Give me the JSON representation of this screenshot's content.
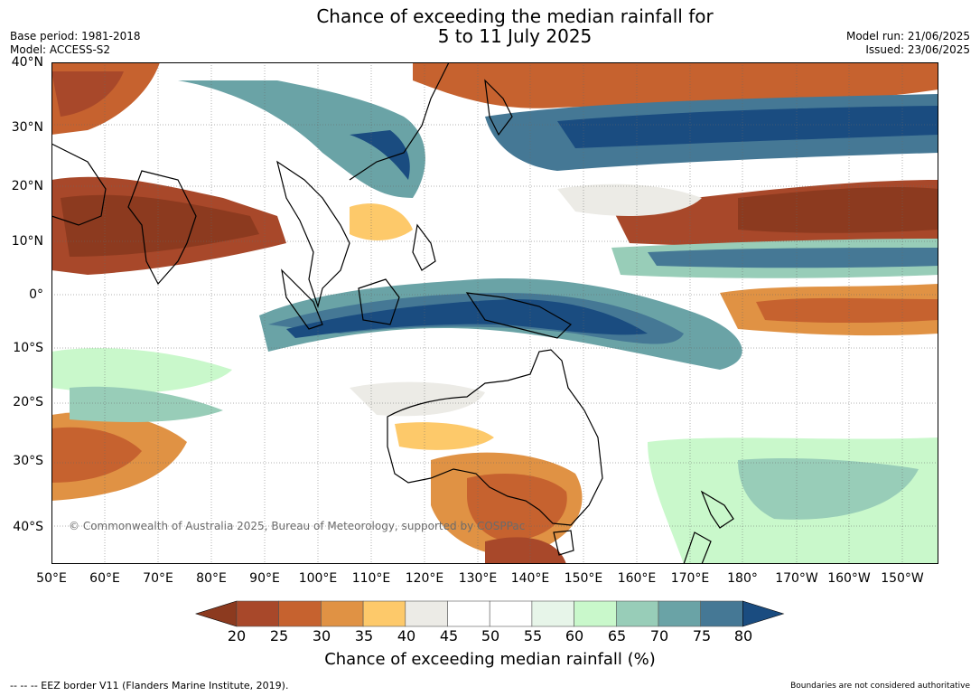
{
  "title": {
    "line1": "Chance of exceeding the median rainfall for",
    "line2": "5 to 11 July 2025"
  },
  "meta": {
    "base_period": "Base period: 1981-2018",
    "model": "Model: ACCESS-S2",
    "model_run": "Model run: 21/06/2025",
    "issued": "Issued: 23/06/2025"
  },
  "map": {
    "latitude_labels": [
      "40°N",
      "30°N",
      "20°N",
      "10°N",
      "0°",
      "10°S",
      "20°S",
      "30°S",
      "40°S"
    ],
    "longitude_labels": [
      "50°E",
      "60°E",
      "70°E",
      "80°E",
      "90°E",
      "100°E",
      "110°E",
      "120°E",
      "130°E",
      "140°E",
      "150°E",
      "160°E",
      "170°E",
      "180°",
      "170°W",
      "160°W",
      "150°W"
    ],
    "copyright": "© Commonwealth of Australia 2025, Bureau of Meteorology, supported by COSPPac"
  },
  "colorbar": {
    "ticks": [
      "20",
      "25",
      "30",
      "35",
      "40",
      "45",
      "50",
      "55",
      "60",
      "65",
      "70",
      "75",
      "80"
    ],
    "label": "Chance of exceeding median rainfall (%)",
    "colors": [
      "#8c3a1f",
      "#a8482a",
      "#c6622f",
      "#e09244",
      "#fdc96a",
      "#ecebe6",
      "#ffffff",
      "#ffffff",
      "#e7f5e9",
      "#c9f8cb",
      "#98cdb8",
      "#6aa3a6",
      "#457895",
      "#1a4c80"
    ]
  },
  "footer": {
    "eez": "--  --  -- EEZ border V11 (Flanders Marine Institute, 2019).",
    "disclaimer": "Boundaries are not considered authoritative"
  }
}
